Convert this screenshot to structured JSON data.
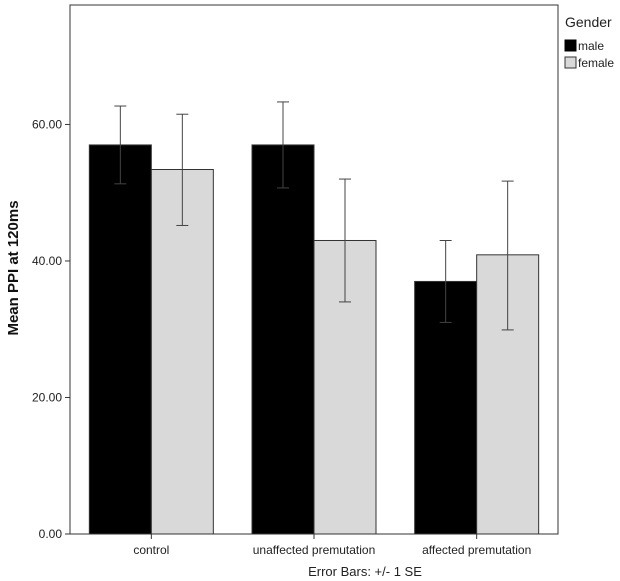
{
  "chart_data": {
    "type": "bar",
    "categories": [
      "control",
      "unaffected premutation",
      "affected premutation"
    ],
    "series": [
      {
        "name": "male",
        "color": "#000000",
        "values": [
          57.0,
          57.0,
          37.0
        ],
        "error_low": [
          51.3,
          50.7,
          31.0
        ],
        "error_high": [
          62.7,
          63.3,
          43.0
        ]
      },
      {
        "name": "female",
        "color": "#d9d9d9",
        "values": [
          53.4,
          43.0,
          40.9
        ],
        "error_low": [
          45.2,
          34.0,
          29.9
        ],
        "error_high": [
          61.5,
          52.0,
          51.7
        ]
      }
    ],
    "title": "",
    "xlabel": "",
    "ylabel": "Mean PPI at 120ms",
    "ylim": [
      0,
      77.5
    ],
    "yticks": [
      0,
      20,
      40,
      60
    ],
    "ytick_labels": [
      "0.00",
      "20.00",
      "40.00",
      "60.00"
    ],
    "legend": {
      "title": "Gender",
      "placement": "top-right"
    },
    "footer_note": "Error Bars: +/- 1 SE",
    "grid": false
  }
}
